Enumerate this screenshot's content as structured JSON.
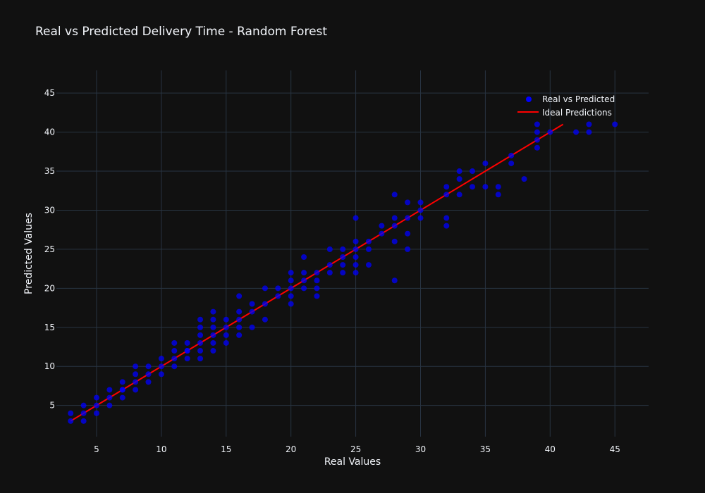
{
  "chart_data": {
    "type": "scatter",
    "title": "Real vs Predicted Delivery Time - Random Forest",
    "xlabel": "Real Values",
    "ylabel": "Predicted Values",
    "xlim": [
      1.9,
      47.6
    ],
    "ylim": [
      1.0,
      47.9
    ],
    "xticks": [
      5,
      10,
      15,
      20,
      25,
      30,
      35,
      40,
      45
    ],
    "yticks": [
      5,
      10,
      15,
      20,
      25,
      30,
      35,
      40,
      45
    ],
    "grid": true,
    "legend_position": "top-right",
    "colors": {
      "points": "#0000ff",
      "ideal_line": "#ff0000",
      "background": "#111111",
      "grid": "#283442"
    },
    "series": [
      {
        "name": "Real vs Predicted",
        "mode": "markers",
        "x": [
          3,
          3,
          4,
          4,
          4,
          5,
          5,
          5,
          6,
          6,
          6,
          7,
          7,
          7,
          7,
          8,
          8,
          8,
          8,
          9,
          9,
          9,
          10,
          10,
          10,
          11,
          11,
          11,
          11,
          12,
          12,
          12,
          12,
          13,
          13,
          13,
          13,
          13,
          13,
          14,
          14,
          14,
          14,
          14,
          14,
          15,
          15,
          15,
          15,
          16,
          16,
          16,
          16,
          16,
          17,
          17,
          17,
          18,
          18,
          18,
          19,
          19,
          20,
          20,
          20,
          20,
          20,
          21,
          21,
          21,
          21,
          22,
          22,
          22,
          22,
          23,
          23,
          23,
          24,
          24,
          24,
          24,
          25,
          25,
          25,
          25,
          25,
          25,
          26,
          26,
          26,
          27,
          27,
          28,
          28,
          28,
          28,
          28,
          29,
          29,
          29,
          29,
          30,
          30,
          30,
          32,
          32,
          32,
          32,
          33,
          33,
          33,
          34,
          34,
          35,
          35,
          36,
          36,
          37,
          37,
          38,
          39,
          39,
          39,
          39,
          40,
          42,
          43,
          43,
          45
        ],
        "y": [
          3,
          4,
          3,
          4,
          5,
          4,
          5,
          6,
          5,
          6,
          7,
          6,
          7,
          8,
          7,
          7,
          8,
          9,
          10,
          8,
          9,
          10,
          9,
          10,
          11,
          10,
          11,
          12,
          13,
          11,
          12,
          13,
          12,
          11,
          12,
          13,
          14,
          15,
          16,
          12,
          13,
          14,
          15,
          16,
          17,
          13,
          14,
          15,
          16,
          14,
          15,
          16,
          17,
          19,
          15,
          17,
          18,
          16,
          18,
          20,
          19,
          20,
          18,
          19,
          20,
          21,
          22,
          20,
          21,
          22,
          24,
          19,
          20,
          21,
          22,
          22,
          23,
          25,
          22,
          23,
          24,
          25,
          22,
          23,
          24,
          25,
          26,
          29,
          23,
          25,
          26,
          27,
          28,
          21,
          26,
          28,
          29,
          32,
          25,
          27,
          29,
          31,
          29,
          30,
          31,
          28,
          29,
          32,
          33,
          32,
          34,
          35,
          33,
          35,
          33,
          36,
          32,
          33,
          36,
          37,
          34,
          38,
          39,
          40,
          41,
          40,
          40,
          40,
          41,
          41
        ]
      },
      {
        "name": "Ideal Predictions",
        "mode": "lines",
        "x": [
          3,
          41
        ],
        "y": [
          3,
          41
        ]
      }
    ]
  }
}
